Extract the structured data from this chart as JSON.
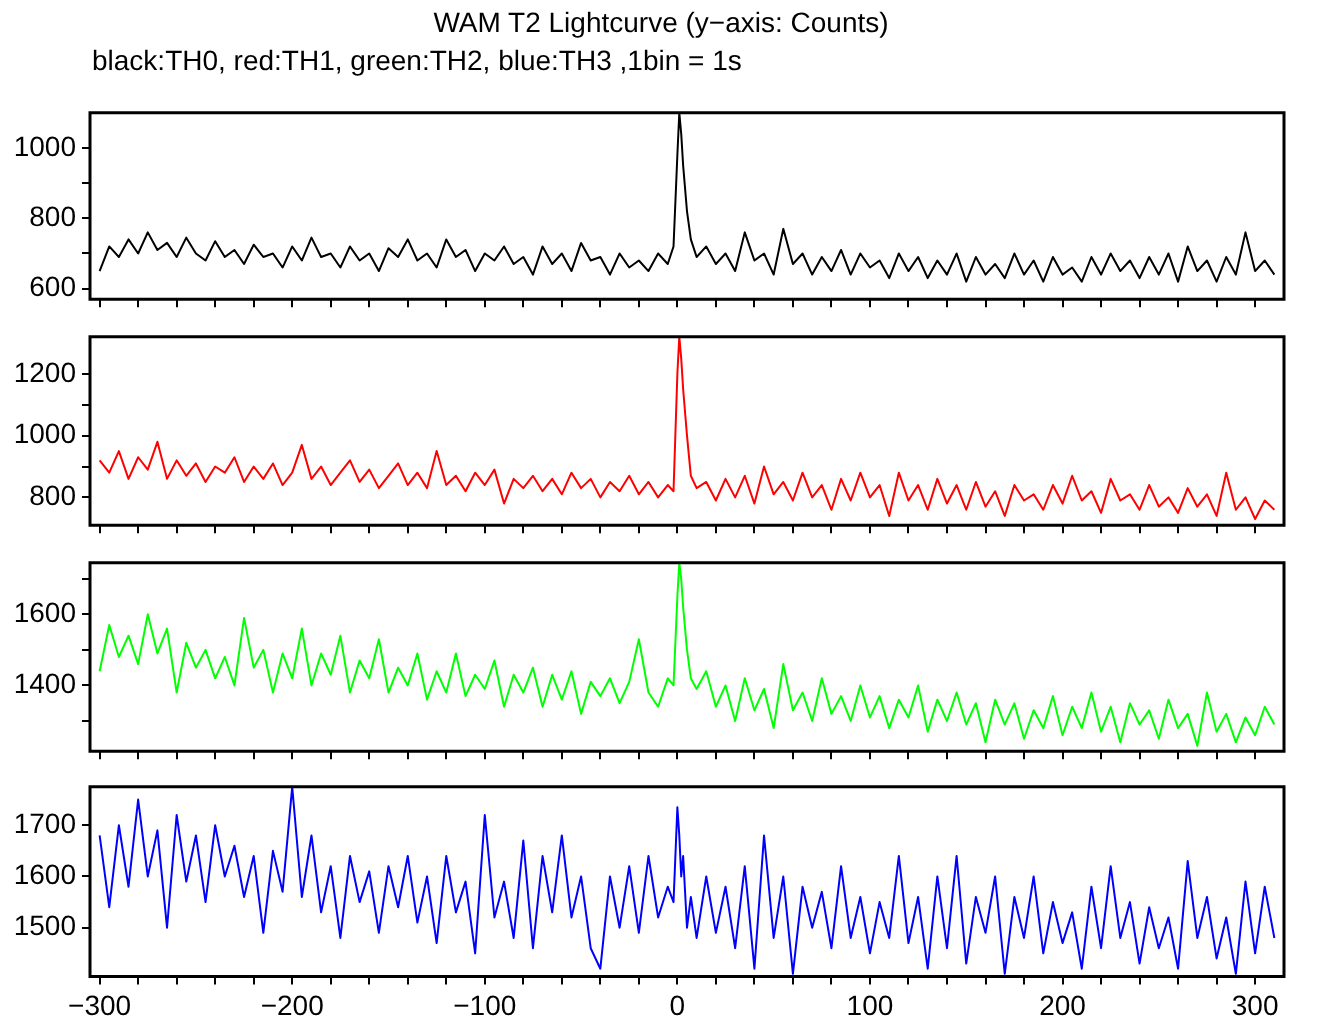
{
  "chart_data": [
    {
      "type": "line",
      "title": "WAM T2 Lightcurve (y−axis: Counts)",
      "subtitle": "black:TH0, red:TH1, green:TH2, blue:TH3 ,1bin = 1s",
      "x": [
        -300,
        -295,
        -290,
        -285,
        -280,
        -275,
        -270,
        -265,
        -260,
        -255,
        -250,
        -245,
        -240,
        -235,
        -230,
        -225,
        -220,
        -215,
        -210,
        -205,
        -200,
        -195,
        -190,
        -185,
        -180,
        -175,
        -170,
        -165,
        -160,
        -155,
        -150,
        -145,
        -140,
        -135,
        -130,
        -125,
        -120,
        -115,
        -110,
        -105,
        -100,
        -95,
        -90,
        -85,
        -80,
        -75,
        -70,
        -65,
        -60,
        -55,
        -50,
        -45,
        -40,
        -35,
        -30,
        -25,
        -20,
        -15,
        -10,
        -5,
        -2,
        0,
        1,
        2,
        3,
        5,
        7,
        10,
        15,
        20,
        25,
        30,
        35,
        40,
        45,
        50,
        55,
        60,
        65,
        70,
        75,
        80,
        85,
        90,
        95,
        100,
        105,
        110,
        115,
        120,
        125,
        130,
        135,
        140,
        145,
        150,
        155,
        160,
        165,
        170,
        175,
        180,
        185,
        190,
        195,
        200,
        205,
        210,
        215,
        220,
        225,
        230,
        235,
        240,
        245,
        250,
        255,
        260,
        265,
        270,
        275,
        280,
        285,
        290,
        295,
        300,
        305,
        310
      ],
      "series": [
        {
          "color": "#000000",
          "values": [
            650,
            720,
            690,
            740,
            700,
            760,
            710,
            730,
            690,
            745,
            700,
            680,
            735,
            690,
            710,
            670,
            725,
            690,
            700,
            660,
            720,
            680,
            745,
            690,
            700,
            660,
            720,
            680,
            700,
            650,
            715,
            690,
            740,
            680,
            700,
            660,
            740,
            690,
            710,
            650,
            700,
            680,
            720,
            670,
            690,
            640,
            720,
            670,
            700,
            650,
            730,
            680,
            690,
            640,
            700,
            660,
            680,
            650,
            700,
            670,
            720,
            980,
            1100,
            1040,
            950,
            820,
            740,
            690,
            720,
            670,
            700,
            650,
            760,
            680,
            700,
            640,
            770,
            670,
            700,
            640,
            690,
            650,
            710,
            640,
            700,
            660,
            680,
            630,
            700,
            650,
            690,
            630,
            680,
            640,
            700,
            620,
            690,
            640,
            670,
            630,
            700,
            640,
            680,
            620,
            690,
            640,
            660,
            620,
            690,
            640,
            700,
            650,
            680,
            630,
            690,
            640,
            700,
            620,
            720,
            650,
            680,
            620,
            690,
            640,
            760,
            650,
            680,
            640
          ]
        }
      ],
      "xlim": [
        -305,
        315
      ],
      "ylim": [
        570,
        1100
      ],
      "xticks": [
        {
          "value": -300,
          "label": null
        },
        {
          "value": -280,
          "label": null
        },
        {
          "value": -260,
          "label": null
        },
        {
          "value": -240,
          "label": null
        },
        {
          "value": -220,
          "label": null
        },
        {
          "value": -200,
          "label": null
        },
        {
          "value": -180,
          "label": null
        },
        {
          "value": -160,
          "label": null
        },
        {
          "value": -140,
          "label": null
        },
        {
          "value": -120,
          "label": null
        },
        {
          "value": -100,
          "label": null
        },
        {
          "value": -80,
          "label": null
        },
        {
          "value": -60,
          "label": null
        },
        {
          "value": -40,
          "label": null
        },
        {
          "value": -20,
          "label": null
        },
        {
          "value": 0,
          "label": null
        },
        {
          "value": 20,
          "label": null
        },
        {
          "value": 40,
          "label": null
        },
        {
          "value": 60,
          "label": null
        },
        {
          "value": 80,
          "label": null
        },
        {
          "value": 100,
          "label": null
        },
        {
          "value": 120,
          "label": null
        },
        {
          "value": 140,
          "label": null
        },
        {
          "value": 160,
          "label": null
        },
        {
          "value": 180,
          "label": null
        },
        {
          "value": 200,
          "label": null
        },
        {
          "value": 220,
          "label": null
        },
        {
          "value": 240,
          "label": null
        },
        {
          "value": 260,
          "label": null
        },
        {
          "value": 280,
          "label": null
        },
        {
          "value": 300,
          "label": null
        }
      ],
      "yticks": [
        600,
        {
          "value": 700,
          "label": null
        },
        800,
        {
          "value": 900,
          "label": null
        },
        1000
      ],
      "tick_labels": "y",
      "grid": false
    },
    {
      "type": "line",
      "x": [
        -300,
        -295,
        -290,
        -285,
        -280,
        -275,
        -270,
        -265,
        -260,
        -255,
        -250,
        -245,
        -240,
        -235,
        -230,
        -225,
        -220,
        -215,
        -210,
        -205,
        -200,
        -195,
        -190,
        -185,
        -180,
        -175,
        -170,
        -165,
        -160,
        -155,
        -150,
        -145,
        -140,
        -135,
        -130,
        -125,
        -120,
        -115,
        -110,
        -105,
        -100,
        -95,
        -90,
        -85,
        -80,
        -75,
        -70,
        -65,
        -60,
        -55,
        -50,
        -45,
        -40,
        -35,
        -30,
        -25,
        -20,
        -15,
        -10,
        -5,
        -2,
        0,
        1,
        2,
        3,
        5,
        7,
        10,
        15,
        20,
        25,
        30,
        35,
        40,
        45,
        50,
        55,
        60,
        65,
        70,
        75,
        80,
        85,
        90,
        95,
        100,
        105,
        110,
        115,
        120,
        125,
        130,
        135,
        140,
        145,
        150,
        155,
        160,
        165,
        170,
        175,
        180,
        185,
        190,
        195,
        200,
        205,
        210,
        215,
        220,
        225,
        230,
        235,
        240,
        245,
        250,
        255,
        260,
        265,
        270,
        275,
        280,
        285,
        290,
        295,
        300,
        305,
        310
      ],
      "series": [
        {
          "color": "#ff0000",
          "values": [
            920,
            880,
            950,
            860,
            930,
            890,
            980,
            860,
            920,
            870,
            910,
            850,
            900,
            880,
            930,
            850,
            900,
            860,
            910,
            840,
            880,
            970,
            860,
            900,
            840,
            880,
            920,
            850,
            890,
            830,
            870,
            910,
            840,
            880,
            830,
            950,
            840,
            870,
            820,
            880,
            840,
            890,
            780,
            860,
            830,
            870,
            820,
            860,
            810,
            880,
            830,
            860,
            800,
            850,
            820,
            870,
            810,
            850,
            800,
            840,
            820,
            1200,
            1320,
            1250,
            1150,
            1000,
            870,
            830,
            850,
            790,
            860,
            800,
            870,
            780,
            900,
            810,
            850,
            790,
            880,
            800,
            840,
            760,
            860,
            790,
            880,
            800,
            840,
            740,
            880,
            790,
            840,
            760,
            860,
            780,
            840,
            760,
            850,
            770,
            820,
            740,
            840,
            790,
            810,
            760,
            840,
            780,
            870,
            790,
            820,
            750,
            860,
            790,
            810,
            760,
            840,
            770,
            800,
            750,
            830,
            770,
            810,
            740,
            880,
            760,
            800,
            730,
            790,
            760
          ]
        }
      ],
      "xlim": [
        -305,
        315
      ],
      "ylim": [
        710,
        1320
      ],
      "xticks": [
        {
          "value": -300,
          "label": null
        },
        {
          "value": -280,
          "label": null
        },
        {
          "value": -260,
          "label": null
        },
        {
          "value": -240,
          "label": null
        },
        {
          "value": -220,
          "label": null
        },
        {
          "value": -200,
          "label": null
        },
        {
          "value": -180,
          "label": null
        },
        {
          "value": -160,
          "label": null
        },
        {
          "value": -140,
          "label": null
        },
        {
          "value": -120,
          "label": null
        },
        {
          "value": -100,
          "label": null
        },
        {
          "value": -80,
          "label": null
        },
        {
          "value": -60,
          "label": null
        },
        {
          "value": -40,
          "label": null
        },
        {
          "value": -20,
          "label": null
        },
        {
          "value": 0,
          "label": null
        },
        {
          "value": 20,
          "label": null
        },
        {
          "value": 40,
          "label": null
        },
        {
          "value": 60,
          "label": null
        },
        {
          "value": 80,
          "label": null
        },
        {
          "value": 100,
          "label": null
        },
        {
          "value": 120,
          "label": null
        },
        {
          "value": 140,
          "label": null
        },
        {
          "value": 160,
          "label": null
        },
        {
          "value": 180,
          "label": null
        },
        {
          "value": 200,
          "label": null
        },
        {
          "value": 220,
          "label": null
        },
        {
          "value": 240,
          "label": null
        },
        {
          "value": 260,
          "label": null
        },
        {
          "value": 280,
          "label": null
        },
        {
          "value": 300,
          "label": null
        }
      ],
      "yticks": [
        800,
        {
          "value": 900,
          "label": null
        },
        1000,
        {
          "value": 1100,
          "label": null
        },
        1200
      ],
      "tick_labels": "y",
      "grid": false
    },
    {
      "type": "line",
      "x": [
        -300,
        -295,
        -290,
        -285,
        -280,
        -275,
        -270,
        -265,
        -260,
        -255,
        -250,
        -245,
        -240,
        -235,
        -230,
        -225,
        -220,
        -215,
        -210,
        -205,
        -200,
        -195,
        -190,
        -185,
        -180,
        -175,
        -170,
        -165,
        -160,
        -155,
        -150,
        -145,
        -140,
        -135,
        -130,
        -125,
        -120,
        -115,
        -110,
        -105,
        -100,
        -95,
        -90,
        -85,
        -80,
        -75,
        -70,
        -65,
        -60,
        -55,
        -50,
        -45,
        -40,
        -35,
        -30,
        -25,
        -20,
        -15,
        -10,
        -5,
        -2,
        0,
        1,
        2,
        3,
        5,
        7,
        10,
        15,
        20,
        25,
        30,
        35,
        40,
        45,
        50,
        55,
        60,
        65,
        70,
        75,
        80,
        85,
        90,
        95,
        100,
        105,
        110,
        115,
        120,
        125,
        130,
        135,
        140,
        145,
        150,
        155,
        160,
        165,
        170,
        175,
        180,
        185,
        190,
        195,
        200,
        205,
        210,
        215,
        220,
        225,
        230,
        235,
        240,
        245,
        250,
        255,
        260,
        265,
        270,
        275,
        280,
        285,
        290,
        295,
        300,
        305,
        310
      ],
      "series": [
        {
          "color": "#00ff00",
          "values": [
            1440,
            1570,
            1480,
            1540,
            1460,
            1600,
            1490,
            1560,
            1380,
            1520,
            1450,
            1500,
            1420,
            1480,
            1400,
            1590,
            1450,
            1500,
            1380,
            1490,
            1420,
            1560,
            1400,
            1490,
            1430,
            1540,
            1380,
            1470,
            1420,
            1530,
            1380,
            1450,
            1400,
            1490,
            1360,
            1440,
            1380,
            1490,
            1370,
            1430,
            1390,
            1470,
            1340,
            1430,
            1380,
            1450,
            1340,
            1430,
            1360,
            1440,
            1320,
            1410,
            1370,
            1420,
            1350,
            1410,
            1530,
            1380,
            1340,
            1420,
            1400,
            1650,
            1745,
            1700,
            1620,
            1500,
            1420,
            1390,
            1440,
            1340,
            1400,
            1300,
            1420,
            1330,
            1390,
            1280,
            1460,
            1330,
            1380,
            1300,
            1420,
            1320,
            1370,
            1300,
            1400,
            1310,
            1370,
            1280,
            1360,
            1310,
            1400,
            1270,
            1360,
            1300,
            1380,
            1290,
            1350,
            1240,
            1360,
            1290,
            1350,
            1250,
            1330,
            1280,
            1370,
            1260,
            1340,
            1280,
            1380,
            1270,
            1340,
            1240,
            1350,
            1290,
            1330,
            1250,
            1360,
            1280,
            1320,
            1230,
            1380,
            1270,
            1320,
            1240,
            1310,
            1260,
            1340,
            1290
          ]
        }
      ],
      "xlim": [
        -305,
        315
      ],
      "ylim": [
        1215,
        1745
      ],
      "xticks": [
        {
          "value": -300,
          "label": null
        },
        {
          "value": -280,
          "label": null
        },
        {
          "value": -260,
          "label": null
        },
        {
          "value": -240,
          "label": null
        },
        {
          "value": -220,
          "label": null
        },
        {
          "value": -200,
          "label": null
        },
        {
          "value": -180,
          "label": null
        },
        {
          "value": -160,
          "label": null
        },
        {
          "value": -140,
          "label": null
        },
        {
          "value": -120,
          "label": null
        },
        {
          "value": -100,
          "label": null
        },
        {
          "value": -80,
          "label": null
        },
        {
          "value": -60,
          "label": null
        },
        {
          "value": -40,
          "label": null
        },
        {
          "value": -20,
          "label": null
        },
        {
          "value": 0,
          "label": null
        },
        {
          "value": 20,
          "label": null
        },
        {
          "value": 40,
          "label": null
        },
        {
          "value": 60,
          "label": null
        },
        {
          "value": 80,
          "label": null
        },
        {
          "value": 100,
          "label": null
        },
        {
          "value": 120,
          "label": null
        },
        {
          "value": 140,
          "label": null
        },
        {
          "value": 160,
          "label": null
        },
        {
          "value": 180,
          "label": null
        },
        {
          "value": 200,
          "label": null
        },
        {
          "value": 220,
          "label": null
        },
        {
          "value": 240,
          "label": null
        },
        {
          "value": 260,
          "label": null
        },
        {
          "value": 280,
          "label": null
        },
        {
          "value": 300,
          "label": null
        }
      ],
      "yticks": [
        {
          "value": 1300,
          "label": null
        },
        1400,
        {
          "value": 1500,
          "label": null
        },
        1600,
        {
          "value": 1700,
          "label": null
        }
      ],
      "tick_labels": "y",
      "grid": false
    },
    {
      "type": "line",
      "x": [
        -300,
        -295,
        -290,
        -285,
        -280,
        -275,
        -270,
        -265,
        -260,
        -255,
        -250,
        -245,
        -240,
        -235,
        -230,
        -225,
        -220,
        -215,
        -210,
        -205,
        -200,
        -195,
        -190,
        -185,
        -180,
        -175,
        -170,
        -165,
        -160,
        -155,
        -150,
        -145,
        -140,
        -135,
        -130,
        -125,
        -120,
        -115,
        -110,
        -105,
        -100,
        -95,
        -90,
        -85,
        -80,
        -75,
        -70,
        -65,
        -60,
        -55,
        -50,
        -45,
        -40,
        -35,
        -30,
        -25,
        -20,
        -15,
        -10,
        -5,
        -2,
        0,
        1,
        2,
        3,
        5,
        7,
        10,
        15,
        20,
        25,
        30,
        35,
        40,
        45,
        50,
        55,
        60,
        65,
        70,
        75,
        80,
        85,
        90,
        95,
        100,
        105,
        110,
        115,
        120,
        125,
        130,
        135,
        140,
        145,
        150,
        155,
        160,
        165,
        170,
        175,
        180,
        185,
        190,
        195,
        200,
        205,
        210,
        215,
        220,
        225,
        230,
        235,
        240,
        245,
        250,
        255,
        260,
        265,
        270,
        275,
        280,
        285,
        290,
        295,
        300,
        305,
        310
      ],
      "series": [
        {
          "color": "#0000ff",
          "values": [
            1680,
            1540,
            1700,
            1580,
            1750,
            1600,
            1690,
            1500,
            1720,
            1590,
            1680,
            1550,
            1700,
            1600,
            1660,
            1560,
            1640,
            1490,
            1650,
            1570,
            1775,
            1560,
            1680,
            1530,
            1620,
            1480,
            1640,
            1550,
            1610,
            1490,
            1620,
            1540,
            1640,
            1510,
            1600,
            1470,
            1640,
            1530,
            1590,
            1450,
            1720,
            1520,
            1590,
            1480,
            1670,
            1460,
            1640,
            1530,
            1680,
            1520,
            1600,
            1460,
            1420,
            1600,
            1500,
            1620,
            1490,
            1640,
            1520,
            1580,
            1550,
            1735,
            1680,
            1600,
            1640,
            1500,
            1560,
            1480,
            1600,
            1490,
            1580,
            1460,
            1620,
            1420,
            1680,
            1480,
            1600,
            1410,
            1580,
            1500,
            1570,
            1460,
            1620,
            1480,
            1560,
            1450,
            1550,
            1480,
            1640,
            1470,
            1560,
            1420,
            1600,
            1460,
            1640,
            1430,
            1560,
            1490,
            1600,
            1410,
            1560,
            1480,
            1600,
            1450,
            1550,
            1470,
            1530,
            1420,
            1580,
            1460,
            1620,
            1480,
            1550,
            1430,
            1540,
            1460,
            1520,
            1420,
            1630,
            1480,
            1560,
            1440,
            1520,
            1410,
            1590,
            1450,
            1580,
            1480
          ]
        }
      ],
      "xlim": [
        -305,
        315
      ],
      "ylim": [
        1405,
        1775
      ],
      "xticks": [
        -300,
        {
          "value": -280,
          "label": null
        },
        {
          "value": -260,
          "label": null
        },
        {
          "value": -240,
          "label": null
        },
        {
          "value": -220,
          "label": null
        },
        -200,
        {
          "value": -180,
          "label": null
        },
        {
          "value": -160,
          "label": null
        },
        {
          "value": -140,
          "label": null
        },
        {
          "value": -120,
          "label": null
        },
        -100,
        {
          "value": -80,
          "label": null
        },
        {
          "value": -60,
          "label": null
        },
        {
          "value": -40,
          "label": null
        },
        {
          "value": -20,
          "label": null
        },
        0,
        {
          "value": 20,
          "label": null
        },
        {
          "value": 40,
          "label": null
        },
        {
          "value": 60,
          "label": null
        },
        {
          "value": 80,
          "label": null
        },
        100,
        {
          "value": 120,
          "label": null
        },
        {
          "value": 140,
          "label": null
        },
        {
          "value": 160,
          "label": null
        },
        {
          "value": 180,
          "label": null
        },
        200,
        {
          "value": 220,
          "label": null
        },
        {
          "value": 240,
          "label": null
        },
        {
          "value": 260,
          "label": null
        },
        {
          "value": 280,
          "label": null
        },
        300
      ],
      "yticks": [
        1500,
        1600,
        1700
      ],
      "grid": false
    }
  ]
}
